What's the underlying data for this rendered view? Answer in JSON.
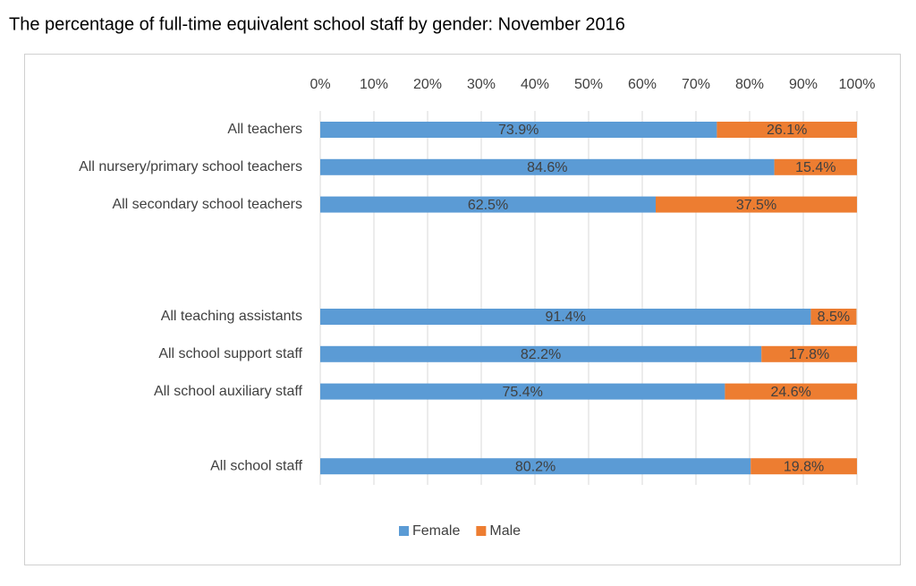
{
  "chart_data": {
    "type": "stacked-barh",
    "title": "The percentage of full-time equivalent school staff by gender: November 2016",
    "categories": [
      "All teachers",
      "All nursery/primary school teachers",
      "All secondary school teachers",
      null,
      null,
      "All teaching assistants",
      "All school support staff",
      "All school auxiliary staff",
      null,
      "All school staff"
    ],
    "series": [
      {
        "name": "Female",
        "color": "#5b9bd5",
        "values": [
          73.9,
          84.6,
          62.5,
          null,
          null,
          91.4,
          82.2,
          75.4,
          null,
          80.2
        ],
        "value_labels": [
          "73.9%",
          "84.6%",
          "62.5%",
          null,
          null,
          "91.4%",
          "82.2%",
          "75.4%",
          null,
          "80.2%"
        ]
      },
      {
        "name": "Male",
        "color": "#ed7d31",
        "values": [
          26.1,
          15.4,
          37.5,
          null,
          null,
          8.5,
          17.8,
          24.6,
          null,
          19.8
        ],
        "value_labels": [
          "26.1%",
          "15.4%",
          "37.5%",
          null,
          null,
          "8.5%",
          "17.8%",
          "24.6%",
          null,
          "19.8%"
        ]
      }
    ],
    "xlim": [
      0,
      100
    ],
    "xticks": [
      {
        "value": 0,
        "label": "0%"
      },
      {
        "value": 10,
        "label": "10%"
      },
      {
        "value": 20,
        "label": "20%"
      },
      {
        "value": 30,
        "label": "30%"
      },
      {
        "value": 40,
        "label": "40%"
      },
      {
        "value": 50,
        "label": "50%"
      },
      {
        "value": 60,
        "label": "60%"
      },
      {
        "value": 70,
        "label": "70%"
      },
      {
        "value": 80,
        "label": "80%"
      },
      {
        "value": 90,
        "label": "90%"
      },
      {
        "value": 100,
        "label": "100%"
      }
    ],
    "grid": true,
    "legend": "bottom"
  }
}
